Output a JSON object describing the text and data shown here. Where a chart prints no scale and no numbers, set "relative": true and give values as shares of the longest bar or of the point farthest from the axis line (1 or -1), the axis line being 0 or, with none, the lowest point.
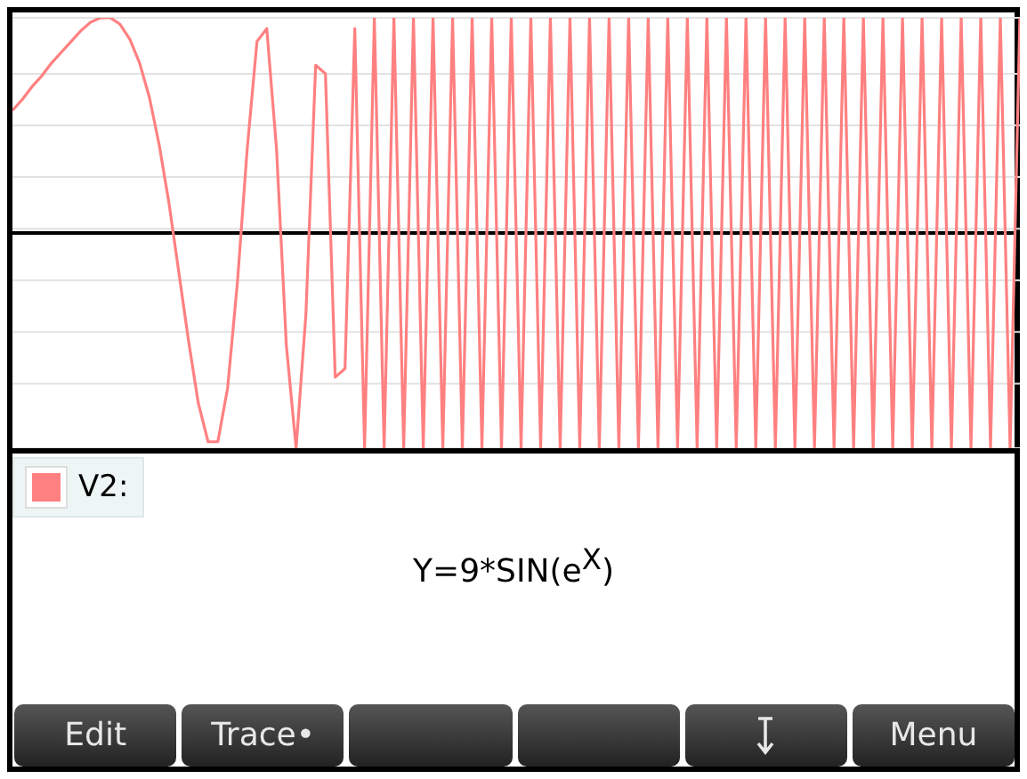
{
  "chart_data": {
    "type": "line",
    "relative": true,
    "categories": [
      null,
      null,
      null,
      null,
      null,
      null,
      null,
      null,
      null,
      null,
      null,
      null,
      null,
      null,
      null,
      null,
      null,
      null,
      null,
      null,
      null,
      null,
      null,
      null,
      null,
      null,
      null,
      null,
      null,
      null,
      null,
      null,
      null,
      null,
      null,
      null,
      null,
      null,
      null,
      null,
      null,
      null,
      null,
      null,
      null,
      null,
      null,
      null,
      null,
      null,
      null,
      null,
      null,
      null,
      null,
      null,
      null,
      null,
      null,
      null,
      null,
      null,
      null,
      null,
      null,
      null,
      null,
      null,
      null,
      null,
      null,
      null,
      null,
      null,
      null,
      null,
      null,
      null,
      null,
      null,
      null,
      null,
      null,
      null,
      null,
      null,
      null,
      null,
      null,
      null,
      null,
      null,
      null,
      null,
      null,
      null,
      null,
      null,
      null,
      null,
      null,
      null,
      null,
      null
    ],
    "series": [
      {
        "name": "V2:",
        "color": "#ff8080",
        "values": [
          0.57,
          0.62,
          0.68,
          0.73,
          0.79,
          0.84,
          0.89,
          0.94,
          0.98,
          1,
          1,
          0.97,
          0.9,
          0.79,
          0.63,
          0.41,
          0.14,
          -0.18,
          -0.5,
          -0.79,
          -0.97,
          -0.97,
          -0.72,
          -0.23,
          0.39,
          0.89,
          0.95,
          0.39,
          -0.52,
          -1,
          -0.38,
          0.78,
          0.74,
          -0.67,
          -0.63,
          0.95,
          -1,
          1,
          -1,
          1,
          -1,
          1,
          -1,
          1,
          -1,
          1,
          -1,
          1,
          -1,
          1,
          -1,
          1,
          -1,
          1,
          -1,
          1,
          -1,
          1,
          -1,
          1,
          -1,
          1,
          -1,
          1,
          -1,
          1,
          -1,
          1,
          -1,
          1,
          -1,
          1,
          -1,
          1,
          -1,
          1,
          -1,
          1,
          -1,
          1,
          -1,
          1,
          -1,
          1,
          -1,
          1,
          -1,
          1,
          -1,
          1,
          -1,
          1,
          -1,
          1,
          -1,
          1,
          -1,
          1,
          -1,
          1,
          -1,
          1,
          -1,
          1
        ]
      }
    ],
    "grid": "y",
    "legend": "bottom left",
    "marker": "none",
    "line_style": "solid",
    "annotations": [
      "Y=9*SIN(e$^{X}$)",
      "Edit",
      "Trace•",
      "Menu"
    ]
  }
}
